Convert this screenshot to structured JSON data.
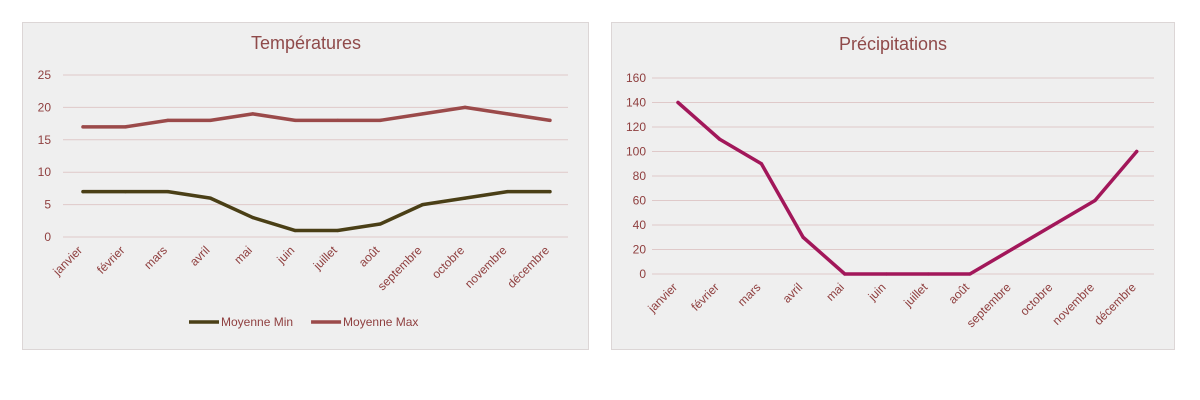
{
  "chart_data": [
    {
      "type": "line",
      "title": "Températures",
      "categories": [
        "janvier",
        "février",
        "mars",
        "avril",
        "mai",
        "juin",
        "juillet",
        "août",
        "septembre",
        "octobre",
        "novembre",
        "décembre"
      ],
      "series": [
        {
          "name": "Moyenne Min",
          "color": "#4a3f16",
          "values": [
            7,
            7,
            7,
            6,
            3,
            1,
            1,
            2,
            5,
            6,
            7,
            7
          ]
        },
        {
          "name": "Moyenne Max",
          "color": "#9b4a4a",
          "values": [
            17,
            17,
            18,
            18,
            19,
            18,
            18,
            18,
            19,
            20,
            19,
            18
          ]
        }
      ],
      "yticks": [
        0,
        5,
        10,
        15,
        20,
        25
      ],
      "ylim": [
        0,
        25
      ],
      "grid": true,
      "legend": "bottom"
    },
    {
      "type": "line",
      "title": "Précipitations",
      "categories": [
        "janvier",
        "février",
        "mars",
        "avril",
        "mai",
        "juin",
        "juillet",
        "août",
        "septembre",
        "octobre",
        "novembre",
        "décembre"
      ],
      "series": [
        {
          "color": "#a2175a",
          "values": [
            140,
            110,
            90,
            30,
            0,
            0,
            0,
            0,
            20,
            40,
            60,
            100
          ]
        }
      ],
      "yticks": [
        0,
        20,
        40,
        60,
        80,
        100,
        120,
        140,
        160
      ],
      "ylim": [
        0,
        160
      ],
      "grid": true,
      "legend": "none"
    }
  ]
}
